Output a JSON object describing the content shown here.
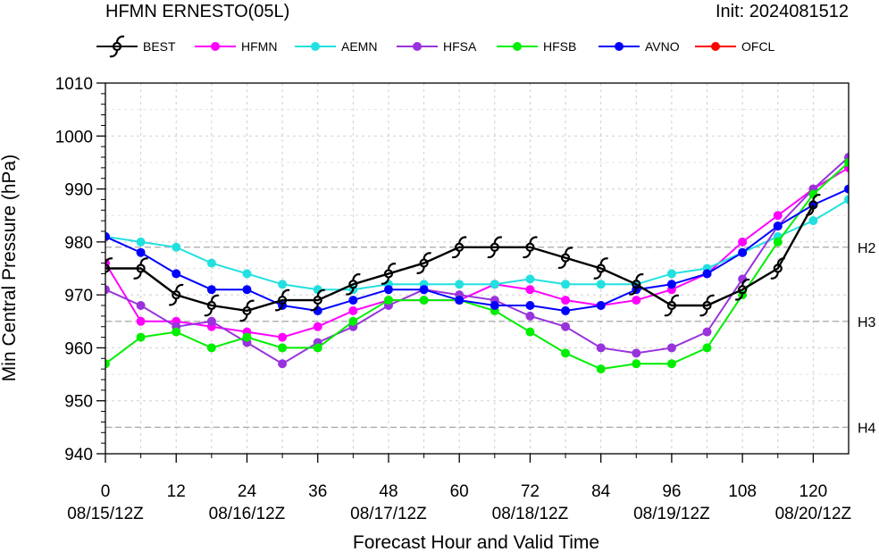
{
  "header": {
    "title": "HFMN ERNESTO(05L)",
    "init": "Init: 2024081512"
  },
  "chart_data": {
    "type": "line",
    "title": "HFMN ERNESTO(05L)",
    "subtitle": "Init: 2024081512",
    "xlabel": "Forecast Hour and Valid Time",
    "ylabel": "Min Central Pressure (hPa)",
    "xlim": [
      0,
      126
    ],
    "ylim": [
      940,
      1010
    ],
    "x_ticks": [
      0,
      12,
      24,
      36,
      48,
      60,
      72,
      84,
      96,
      108,
      120
    ],
    "x_ticks_minor": [
      6,
      18,
      30,
      42,
      54,
      66,
      78,
      90,
      102,
      114
    ],
    "date_labels": [
      {
        "x": 0,
        "label": "08/15/12Z"
      },
      {
        "x": 24,
        "label": "08/16/12Z"
      },
      {
        "x": 48,
        "label": "08/17/12Z"
      },
      {
        "x": 72,
        "label": "08/18/12Z"
      },
      {
        "x": 96,
        "label": "08/19/12Z"
      },
      {
        "x": 120,
        "label": "08/20/12Z"
      }
    ],
    "y_ticks": [
      940,
      950,
      960,
      970,
      980,
      990,
      1000,
      1010
    ],
    "grid": true,
    "reference_lines": [
      {
        "y": 979,
        "label": "H2"
      },
      {
        "y": 965,
        "label": "H3"
      },
      {
        "y": 945,
        "label": "H4"
      }
    ],
    "legend_position": "top",
    "series": [
      {
        "name": "BEST",
        "color": "#000000",
        "marker": "hurricane",
        "x": [
          0,
          6,
          12,
          18,
          24,
          30,
          36,
          42,
          48,
          54,
          60,
          66,
          72,
          78,
          84,
          90,
          96,
          102,
          108,
          114,
          120
        ],
        "values": [
          975,
          975,
          970,
          968,
          967,
          969,
          969,
          972,
          974,
          976,
          979,
          979,
          979,
          977,
          975,
          972,
          968,
          968,
          971,
          975,
          987
        ]
      },
      {
        "name": "HFMN",
        "color": "#ff00ff",
        "marker": "circle",
        "x": [
          0,
          6,
          12,
          18,
          24,
          30,
          36,
          42,
          48,
          54,
          60,
          66,
          72,
          78,
          84,
          90,
          96,
          102,
          108,
          114,
          120,
          126
        ],
        "values": [
          976,
          965,
          965,
          964,
          963,
          962,
          964,
          967,
          969,
          969,
          969,
          972,
          971,
          969,
          968,
          969,
          971,
          974,
          980,
          985,
          990,
          994
        ]
      },
      {
        "name": "AEMN",
        "color": "#22e0e0",
        "marker": "circle",
        "x": [
          0,
          6,
          12,
          18,
          24,
          30,
          36,
          42,
          48,
          54,
          60,
          66,
          72,
          78,
          84,
          90,
          96,
          102,
          108,
          114,
          120,
          126
        ],
        "values": [
          981,
          980,
          979,
          976,
          974,
          972,
          971,
          971,
          972,
          972,
          972,
          972,
          973,
          972,
          972,
          972,
          974,
          975,
          978,
          981,
          984,
          988
        ]
      },
      {
        "name": "HFSA",
        "color": "#9933dd",
        "marker": "circle",
        "x": [
          0,
          6,
          12,
          18,
          24,
          30,
          36,
          42,
          48,
          54,
          60,
          66,
          72,
          78,
          84,
          90,
          96,
          102,
          108,
          114,
          120,
          126
        ],
        "values": [
          971,
          968,
          964,
          965,
          961,
          957,
          961,
          964,
          968,
          971,
          970,
          969,
          966,
          964,
          960,
          959,
          960,
          963,
          973,
          983,
          990,
          996
        ]
      },
      {
        "name": "HFSB",
        "color": "#00ee00",
        "marker": "circle",
        "x": [
          0,
          6,
          12,
          18,
          24,
          30,
          36,
          42,
          48,
          54,
          60,
          66,
          72,
          78,
          84,
          90,
          96,
          102,
          108,
          114,
          120,
          126
        ],
        "values": [
          957,
          962,
          963,
          960,
          962,
          960,
          960,
          965,
          969,
          969,
          969,
          967,
          963,
          959,
          956,
          957,
          957,
          960,
          970,
          980,
          989,
          995
        ]
      },
      {
        "name": "AVNO",
        "color": "#0000ff",
        "marker": "circle",
        "x": [
          0,
          6,
          12,
          18,
          24,
          30,
          36,
          42,
          48,
          54,
          60,
          66,
          72,
          78,
          84,
          90,
          96,
          102,
          108,
          114,
          120,
          126
        ],
        "values": [
          981,
          978,
          974,
          971,
          971,
          968,
          967,
          969,
          971,
          971,
          969,
          968,
          968,
          967,
          968,
          971,
          972,
          974,
          978,
          983,
          987,
          990
        ]
      },
      {
        "name": "OFCL",
        "color": "#ff0000",
        "marker": "circle",
        "x": [],
        "values": []
      }
    ]
  }
}
